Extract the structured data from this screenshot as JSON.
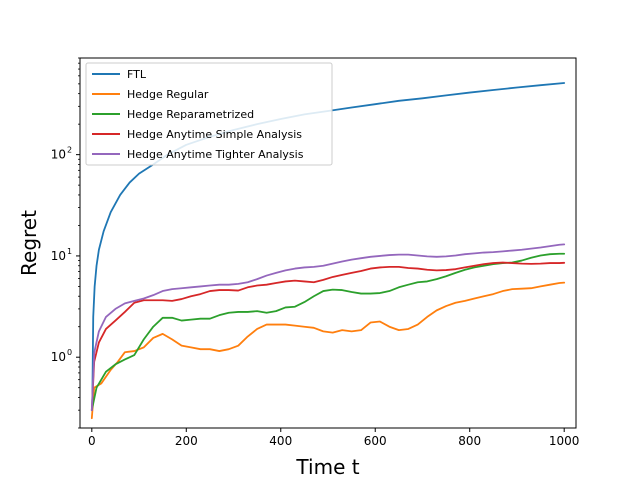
{
  "chart_data": {
    "type": "line",
    "xlabel": "Time t",
    "ylabel": "Regret",
    "xlim": [
      -25,
      1025
    ],
    "ylim": [
      0.2,
      900
    ],
    "yscale": "log",
    "grid": false,
    "legend_position": "top-left",
    "x_ticks": [
      0,
      200,
      400,
      600,
      800,
      1000
    ],
    "y_ticks": [
      {
        "value": 1,
        "label": "10",
        "exp": "0"
      },
      {
        "value": 10,
        "label": "10",
        "exp": "1"
      },
      {
        "value": 100,
        "label": "10",
        "exp": "2"
      }
    ],
    "series": [
      {
        "name": "FTL",
        "color": "#1f77b4",
        "x": [
          1,
          3,
          6,
          10,
          15,
          25,
          40,
          60,
          80,
          100,
          130,
          160,
          200,
          250,
          300,
          350,
          400,
          450,
          500,
          550,
          600,
          650,
          700,
          750,
          800,
          850,
          900,
          950,
          1000
        ],
        "y": [
          0.32,
          2.5,
          5,
          8,
          11.5,
          17.5,
          27,
          40,
          53,
          65,
          80,
          100,
          125,
          150,
          175,
          200,
          225,
          250,
          270,
          292,
          315,
          340,
          360,
          385,
          410,
          435,
          460,
          485,
          510
        ]
      },
      {
        "name": "Hedge Regular",
        "color": "#ff7f0e",
        "x": [
          0,
          5,
          20,
          40,
          55,
          70,
          90,
          110,
          130,
          150,
          170,
          190,
          210,
          230,
          250,
          270,
          290,
          310,
          330,
          350,
          370,
          390,
          410,
          430,
          450,
          470,
          490,
          510,
          530,
          550,
          570,
          590,
          610,
          630,
          650,
          670,
          690,
          710,
          730,
          750,
          770,
          790,
          810,
          830,
          850,
          870,
          890,
          910,
          930,
          950,
          970,
          990,
          1000
        ],
        "y": [
          0.25,
          0.5,
          0.55,
          0.75,
          0.9,
          1.12,
          1.15,
          1.25,
          1.55,
          1.7,
          1.5,
          1.3,
          1.25,
          1.2,
          1.2,
          1.15,
          1.2,
          1.3,
          1.6,
          1.9,
          2.1,
          2.1,
          2.1,
          2.05,
          2.0,
          1.95,
          1.8,
          1.75,
          1.85,
          1.8,
          1.85,
          2.2,
          2.25,
          2.0,
          1.85,
          1.9,
          2.1,
          2.5,
          2.9,
          3.2,
          3.45,
          3.6,
          3.8,
          4.0,
          4.2,
          4.5,
          4.7,
          4.75,
          4.8,
          5.0,
          5.2,
          5.4,
          5.45
        ]
      },
      {
        "name": "Hedge Reparametrized",
        "color": "#2ca02c",
        "x": [
          0,
          10,
          30,
          50,
          70,
          90,
          110,
          130,
          150,
          170,
          190,
          210,
          230,
          250,
          270,
          290,
          310,
          330,
          350,
          370,
          390,
          410,
          430,
          450,
          470,
          490,
          510,
          530,
          550,
          570,
          590,
          610,
          630,
          650,
          670,
          690,
          710,
          730,
          750,
          770,
          790,
          810,
          830,
          850,
          870,
          890,
          910,
          930,
          950,
          970,
          990,
          1000
        ],
        "y": [
          0.3,
          0.5,
          0.72,
          0.85,
          0.95,
          1.05,
          1.5,
          2.0,
          2.45,
          2.45,
          2.3,
          2.35,
          2.4,
          2.4,
          2.6,
          2.75,
          2.8,
          2.8,
          2.85,
          2.75,
          2.85,
          3.1,
          3.15,
          3.5,
          4.0,
          4.5,
          4.65,
          4.6,
          4.4,
          4.25,
          4.25,
          4.3,
          4.5,
          4.9,
          5.2,
          5.5,
          5.6,
          5.9,
          6.3,
          6.8,
          7.3,
          7.7,
          8.0,
          8.3,
          8.5,
          8.6,
          9.0,
          9.6,
          10.1,
          10.4,
          10.5,
          10.5
        ]
      },
      {
        "name": "Hedge Anytime Simple Analysis",
        "color": "#d62728",
        "x": [
          0,
          5,
          15,
          30,
          50,
          70,
          90,
          110,
          130,
          150,
          170,
          190,
          210,
          230,
          250,
          270,
          290,
          310,
          330,
          350,
          370,
          390,
          410,
          430,
          450,
          470,
          490,
          510,
          530,
          550,
          570,
          590,
          610,
          630,
          650,
          670,
          690,
          710,
          730,
          750,
          770,
          790,
          810,
          830,
          850,
          870,
          890,
          910,
          930,
          950,
          970,
          990,
          1000
        ],
        "y": [
          0.3,
          0.9,
          1.4,
          1.9,
          2.3,
          2.8,
          3.45,
          3.65,
          3.65,
          3.65,
          3.6,
          3.75,
          4.0,
          4.2,
          4.5,
          4.6,
          4.6,
          4.55,
          4.9,
          5.1,
          5.2,
          5.4,
          5.6,
          5.7,
          5.6,
          5.5,
          5.8,
          6.2,
          6.5,
          6.8,
          7.1,
          7.5,
          7.7,
          7.8,
          7.8,
          7.6,
          7.5,
          7.3,
          7.2,
          7.25,
          7.4,
          7.7,
          8.0,
          8.3,
          8.5,
          8.6,
          8.5,
          8.4,
          8.35,
          8.4,
          8.5,
          8.5,
          8.55
        ]
      },
      {
        "name": "Hedge Anytime Tighter Analysis",
        "color": "#9467bd",
        "x": [
          0,
          5,
          15,
          30,
          50,
          70,
          90,
          110,
          130,
          150,
          170,
          190,
          210,
          230,
          250,
          270,
          290,
          310,
          330,
          350,
          370,
          390,
          410,
          430,
          450,
          470,
          490,
          510,
          530,
          550,
          570,
          590,
          610,
          630,
          650,
          670,
          690,
          710,
          730,
          750,
          770,
          790,
          810,
          830,
          850,
          870,
          890,
          910,
          930,
          950,
          970,
          990,
          1000
        ],
        "y": [
          0.3,
          1.1,
          1.8,
          2.5,
          3.0,
          3.4,
          3.6,
          3.8,
          4.1,
          4.5,
          4.7,
          4.8,
          4.9,
          5.0,
          5.1,
          5.2,
          5.2,
          5.3,
          5.5,
          5.9,
          6.4,
          6.8,
          7.2,
          7.5,
          7.7,
          7.8,
          8.0,
          8.4,
          8.8,
          9.2,
          9.5,
          9.8,
          10.0,
          10.2,
          10.3,
          10.3,
          10.1,
          9.9,
          9.8,
          9.9,
          10.1,
          10.4,
          10.6,
          10.8,
          10.9,
          11.1,
          11.3,
          11.5,
          11.8,
          12.1,
          12.5,
          12.9,
          13.0
        ]
      }
    ]
  }
}
